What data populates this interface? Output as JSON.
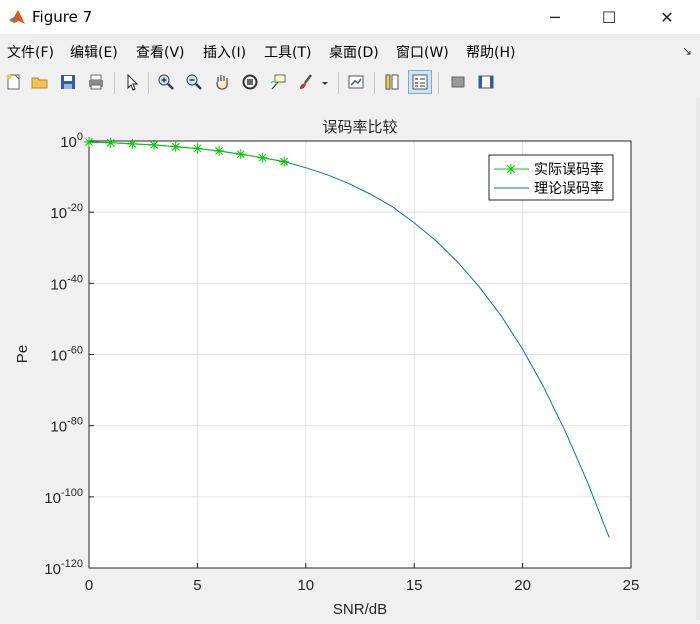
{
  "window": {
    "title": "Figure 7",
    "controls": [
      "─",
      "☐",
      "✕"
    ]
  },
  "menu": {
    "items": [
      "文件(F)",
      "编辑(E)",
      "查看(V)",
      "插入(I)",
      "工具(T)",
      "桌面(D)",
      "窗口(W)",
      "帮助(H)"
    ],
    "overflow": "↘"
  },
  "toolbar": {
    "buttons": [
      "new-figure-icon",
      "open-folder-icon",
      "save-icon",
      "print-icon",
      "pointer-icon",
      "zoom-in-icon",
      "zoom-out-icon",
      "pan-hand-icon",
      "rotate-3d-icon",
      "data-cursor-icon",
      "brush-icon",
      "link-plot-icon",
      "colorbar-icon",
      "legend-icon",
      "hide-plot-tools-icon",
      "show-plot-tools-icon"
    ],
    "active": "legend-icon"
  },
  "chart_data": {
    "type": "line",
    "title": "误码率比较",
    "xlabel": "SNR/dB",
    "ylabel": "Pe",
    "xlim": [
      0,
      25
    ],
    "ylim_log10": [
      -120,
      0
    ],
    "y_scale": "log",
    "x_ticks": [
      "0",
      "5",
      "10",
      "15",
      "20",
      "25"
    ],
    "y_ticks": [
      {
        "base": "10",
        "exp": "0"
      },
      {
        "base": "10",
        "exp": "-20"
      },
      {
        "base": "10",
        "exp": "-40"
      },
      {
        "base": "10",
        "exp": "-60"
      },
      {
        "base": "10",
        "exp": "-80"
      },
      {
        "base": "10",
        "exp": "-100"
      },
      {
        "base": "10",
        "exp": "-120"
      }
    ],
    "grid": true,
    "legend_position": "top-right",
    "series": [
      {
        "name": "实际误码率",
        "color": "#00cc00",
        "marker": "asterisk",
        "x": [
          0,
          1,
          2,
          3,
          4,
          5,
          6,
          7,
          8,
          9
        ],
        "log10_y": [
          -0.3,
          -0.5,
          -0.8,
          -1.1,
          -1.6,
          -2.1,
          -2.8,
          -3.7,
          -4.7,
          -5.8
        ]
      },
      {
        "name": "理论误码率",
        "color": "#0072bd",
        "marker": "none",
        "x": [
          0,
          1,
          2,
          3,
          4,
          5,
          6,
          7,
          8,
          9,
          10,
          11,
          12,
          13,
          14,
          15,
          16,
          17,
          18,
          19,
          20,
          21,
          22,
          23,
          24
        ],
        "log10_y": [
          -0.3,
          -0.5,
          -0.8,
          -1.1,
          -1.6,
          -2.1,
          -2.8,
          -3.7,
          -4.7,
          -5.8,
          -7.5,
          -9.5,
          -12.0,
          -15.0,
          -18.5,
          -23.0,
          -28.0,
          -34.0,
          -41.0,
          -49.0,
          -58.5,
          -69.5,
          -82.0,
          -96.0,
          -111.5
        ]
      }
    ]
  }
}
